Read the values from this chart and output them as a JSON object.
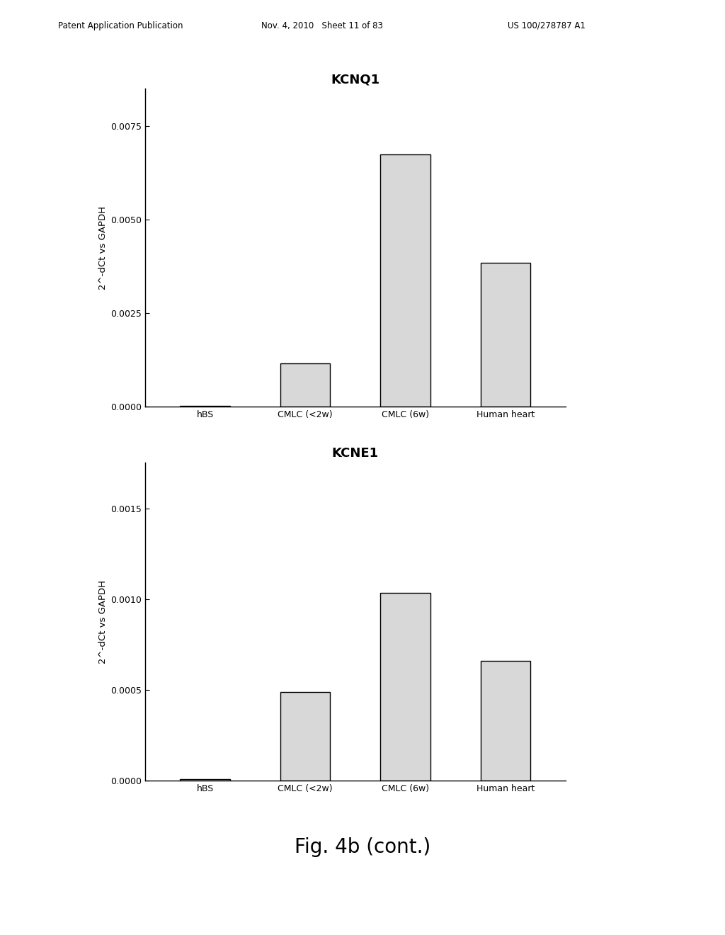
{
  "chart1": {
    "title": "KCNQ1",
    "categories": [
      "hBS",
      "CMLC (<2w)",
      "CMLC (6w)",
      "Human heart"
    ],
    "values": [
      2.5e-05,
      0.00115,
      0.00675,
      0.00385
    ],
    "ylabel": "2^-dCt vs GAPDH",
    "ylim": [
      0,
      0.0085
    ],
    "yticks": [
      0.0,
      0.0025,
      0.005,
      0.0075
    ],
    "ytick_labels": [
      "0.0000",
      "0.0025",
      "0.0050",
      "0.0075"
    ]
  },
  "chart2": {
    "title": "KCNE1",
    "categories": [
      "hBS",
      "CMLC (<2w)",
      "CMLC (6w)",
      "Human heart"
    ],
    "values": [
      1e-05,
      0.00049,
      0.001035,
      0.00066
    ],
    "ylabel": "2^-dCt vs GAPDH",
    "ylim": [
      0,
      0.00175
    ],
    "yticks": [
      0.0,
      0.0005,
      0.001,
      0.0015
    ],
    "ytick_labels": [
      "0.0000",
      "0.0005",
      "0.0010",
      "0.0015"
    ]
  },
  "header_left": "Patent Application Publication",
  "header_mid": "Nov. 4, 2010   Sheet 11 of 83",
  "header_right": "US 100/278787 A1",
  "figure_label": "Fig. 4b (cont.)",
  "bar_color": "#d8d8d8",
  "bar_edgecolor": "#000000",
  "background_color": "#ffffff",
  "title_fontsize": 13,
  "label_fontsize": 9.5,
  "tick_fontsize": 9,
  "header_fontsize": 8.5
}
